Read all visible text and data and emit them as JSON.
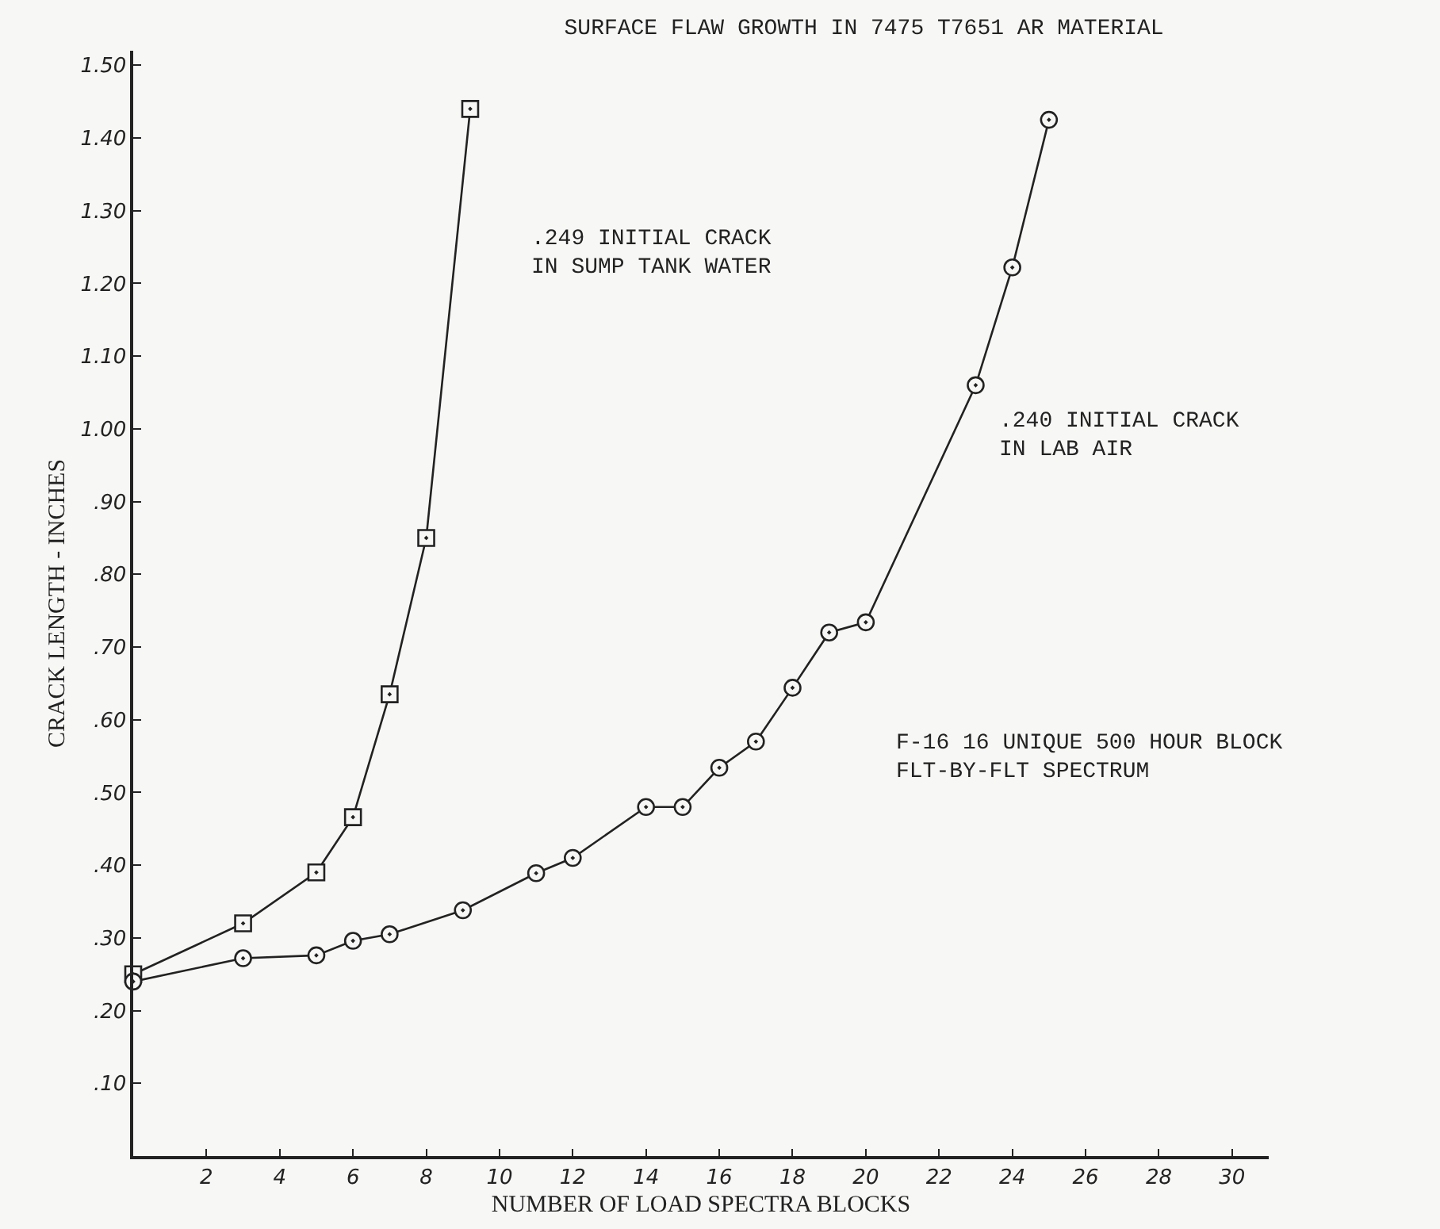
{
  "chart_data": {
    "type": "line",
    "title": "SURFACE FLAW GROWTH IN 7475 T7651 AR MATERIAL",
    "xlabel": "NUMBER OF LOAD SPECTRA BLOCKS",
    "ylabel": "CRACK LENGTH - INCHES",
    "series": [
      {
        "color": "#222222",
        "marker": "square",
        "x": [
          0,
          3,
          5,
          6,
          7,
          8,
          9.2
        ],
        "values": [
          0.25,
          0.32,
          0.39,
          0.466,
          0.635,
          0.85,
          1.44
        ]
      },
      {
        "color": "#222222",
        "marker": "circle",
        "x": [
          0,
          3,
          5,
          6,
          7,
          9,
          11,
          12,
          14,
          15,
          16,
          17,
          18,
          19,
          20,
          23,
          24,
          25
        ],
        "values": [
          0.24,
          0.272,
          0.276,
          0.296,
          0.305,
          0.338,
          0.389,
          0.41,
          0.48,
          0.48,
          0.534,
          0.57,
          0.644,
          0.72,
          0.734,
          1.06,
          1.222,
          1.425
        ]
      }
    ],
    "annotations": [
      ".249 INITIAL CRACK\nIN SUMP TANK WATER",
      ".240 INITIAL CRACK\nIN LAB AIR",
      "F-16 16 UNIQUE 500 HOUR BLOCK\nFLT-BY-FLT SPECTRUM"
    ],
    "xlim": [
      0,
      31
    ],
    "ylim": [
      0,
      1.52
    ],
    "xticks": [
      2,
      4,
      6,
      8,
      10,
      12,
      14,
      16,
      18,
      20,
      22,
      24,
      26,
      28,
      30
    ],
    "yticks": [
      {
        "value": 0.1,
        "label": ".10"
      },
      {
        "value": 0.2,
        "label": ".20"
      },
      {
        "value": 0.3,
        "label": ".30"
      },
      {
        "value": 0.4,
        "label": ".40"
      },
      {
        "value": 0.5,
        "label": ".50"
      },
      {
        "value": 0.6,
        "label": ".60"
      },
      {
        "value": 0.7,
        "label": ".70"
      },
      {
        "value": 0.8,
        "label": ".80"
      },
      {
        "value": 0.9,
        "label": ".90"
      },
      {
        "value": 1.0,
        "label": "1.00"
      },
      {
        "value": 1.1,
        "label": "1.10"
      },
      {
        "value": 1.2,
        "label": "1.20"
      },
      {
        "value": 1.3,
        "label": "1.30"
      },
      {
        "value": 1.4,
        "label": "1.40"
      },
      {
        "value": 1.5,
        "label": "1.50"
      }
    ],
    "grid": false,
    "line_style": "solid"
  }
}
